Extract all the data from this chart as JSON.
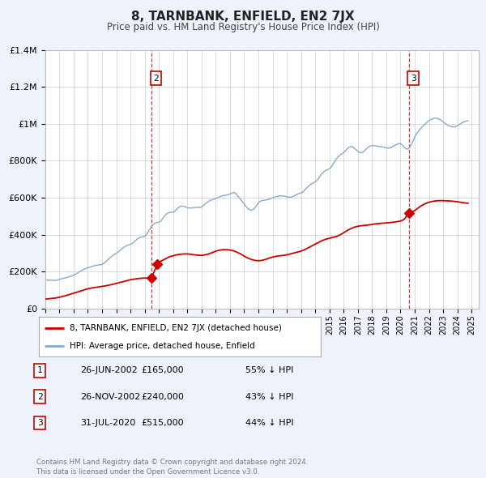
{
  "title": "8, TARNBANK, ENFIELD, EN2 7JX",
  "subtitle": "Price paid vs. HM Land Registry's House Price Index (HPI)",
  "bg_color": "#eef2fb",
  "plot_bg_color": "#ffffff",
  "red_line_color": "#cc0000",
  "blue_line_color": "#88aacc",
  "grid_color": "#cccccc",
  "x_start": 1995.0,
  "x_end": 2025.5,
  "y_min": 0,
  "y_max": 1400000,
  "yticks": [
    0,
    200000,
    400000,
    600000,
    800000,
    1000000,
    1200000,
    1400000
  ],
  "ytick_labels": [
    "£0",
    "£200K",
    "£400K",
    "£600K",
    "£800K",
    "£1M",
    "£1.2M",
    "£1.4M"
  ],
  "xtick_years": [
    1995,
    1996,
    1997,
    1998,
    1999,
    2000,
    2001,
    2002,
    2003,
    2004,
    2005,
    2006,
    2007,
    2008,
    2009,
    2010,
    2011,
    2012,
    2013,
    2014,
    2015,
    2016,
    2017,
    2018,
    2019,
    2020,
    2021,
    2022,
    2023,
    2024,
    2025
  ],
  "sale1_x": 2002.48,
  "sale1_y": 165000,
  "sale2_x": 2002.9,
  "sale2_y": 240000,
  "sale3_x": 2020.58,
  "sale3_y": 515000,
  "vline1_x": 2002.48,
  "vline2_x": 2020.58,
  "legend_label_red": "8, TARNBANK, ENFIELD, EN2 7JX (detached house)",
  "legend_label_blue": "HPI: Average price, detached house, Enfield",
  "table_rows": [
    [
      "1",
      "26-JUN-2002",
      "£165,000",
      "55% ↓ HPI"
    ],
    [
      "2",
      "26-NOV-2002",
      "£240,000",
      "43% ↓ HPI"
    ],
    [
      "3",
      "31-JUL-2020",
      "£515,000",
      "44% ↓ HPI"
    ]
  ],
  "footer": "Contains HM Land Registry data © Crown copyright and database right 2024.\nThis data is licensed under the Open Government Licence v3.0.",
  "hpi_data": {
    "years": [
      1995.0,
      1995.08,
      1995.17,
      1995.25,
      1995.33,
      1995.42,
      1995.5,
      1995.58,
      1995.67,
      1995.75,
      1995.83,
      1995.92,
      1996.0,
      1996.08,
      1996.17,
      1996.25,
      1996.33,
      1996.42,
      1996.5,
      1996.58,
      1996.67,
      1996.75,
      1996.83,
      1996.92,
      1997.0,
      1997.08,
      1997.17,
      1997.25,
      1997.33,
      1997.42,
      1997.5,
      1997.58,
      1997.67,
      1997.75,
      1997.83,
      1997.92,
      1998.0,
      1998.08,
      1998.17,
      1998.25,
      1998.33,
      1998.42,
      1998.5,
      1998.58,
      1998.67,
      1998.75,
      1998.83,
      1998.92,
      1999.0,
      1999.08,
      1999.17,
      1999.25,
      1999.33,
      1999.42,
      1999.5,
      1999.58,
      1999.67,
      1999.75,
      1999.83,
      1999.92,
      2000.0,
      2000.08,
      2000.17,
      2000.25,
      2000.33,
      2000.42,
      2000.5,
      2000.58,
      2000.67,
      2000.75,
      2000.83,
      2000.92,
      2001.0,
      2001.08,
      2001.17,
      2001.25,
      2001.33,
      2001.42,
      2001.5,
      2001.58,
      2001.67,
      2001.75,
      2001.83,
      2001.92,
      2002.0,
      2002.08,
      2002.17,
      2002.25,
      2002.33,
      2002.42,
      2002.5,
      2002.58,
      2002.67,
      2002.75,
      2002.83,
      2002.92,
      2003.0,
      2003.08,
      2003.17,
      2003.25,
      2003.33,
      2003.42,
      2003.5,
      2003.58,
      2003.67,
      2003.75,
      2003.83,
      2003.92,
      2004.0,
      2004.08,
      2004.17,
      2004.25,
      2004.33,
      2004.42,
      2004.5,
      2004.58,
      2004.67,
      2004.75,
      2004.83,
      2004.92,
      2005.0,
      2005.08,
      2005.17,
      2005.25,
      2005.33,
      2005.42,
      2005.5,
      2005.58,
      2005.67,
      2005.75,
      2005.83,
      2005.92,
      2006.0,
      2006.08,
      2006.17,
      2006.25,
      2006.33,
      2006.42,
      2006.5,
      2006.58,
      2006.67,
      2006.75,
      2006.83,
      2006.92,
      2007.0,
      2007.08,
      2007.17,
      2007.25,
      2007.33,
      2007.42,
      2007.5,
      2007.58,
      2007.67,
      2007.75,
      2007.83,
      2007.92,
      2008.0,
      2008.08,
      2008.17,
      2008.25,
      2008.33,
      2008.42,
      2008.5,
      2008.58,
      2008.67,
      2008.75,
      2008.83,
      2008.92,
      2009.0,
      2009.08,
      2009.17,
      2009.25,
      2009.33,
      2009.42,
      2009.5,
      2009.58,
      2009.67,
      2009.75,
      2009.83,
      2009.92,
      2010.0,
      2010.08,
      2010.17,
      2010.25,
      2010.33,
      2010.42,
      2010.5,
      2010.58,
      2010.67,
      2010.75,
      2010.83,
      2010.92,
      2011.0,
      2011.08,
      2011.17,
      2011.25,
      2011.33,
      2011.42,
      2011.5,
      2011.58,
      2011.67,
      2011.75,
      2011.83,
      2011.92,
      2012.0,
      2012.08,
      2012.17,
      2012.25,
      2012.33,
      2012.42,
      2012.5,
      2012.58,
      2012.67,
      2012.75,
      2012.83,
      2012.92,
      2013.0,
      2013.08,
      2013.17,
      2013.25,
      2013.33,
      2013.42,
      2013.5,
      2013.58,
      2013.67,
      2013.75,
      2013.83,
      2013.92,
      2014.0,
      2014.08,
      2014.17,
      2014.25,
      2014.33,
      2014.42,
      2014.5,
      2014.58,
      2014.67,
      2014.75,
      2014.83,
      2014.92,
      2015.0,
      2015.08,
      2015.17,
      2015.25,
      2015.33,
      2015.42,
      2015.5,
      2015.58,
      2015.67,
      2015.75,
      2015.83,
      2015.92,
      2016.0,
      2016.08,
      2016.17,
      2016.25,
      2016.33,
      2016.42,
      2016.5,
      2016.58,
      2016.67,
      2016.75,
      2016.83,
      2016.92,
      2017.0,
      2017.08,
      2017.17,
      2017.25,
      2017.33,
      2017.42,
      2017.5,
      2017.58,
      2017.67,
      2017.75,
      2017.83,
      2017.92,
      2018.0,
      2018.08,
      2018.17,
      2018.25,
      2018.33,
      2018.42,
      2018.5,
      2018.58,
      2018.67,
      2018.75,
      2018.83,
      2018.92,
      2019.0,
      2019.08,
      2019.17,
      2019.25,
      2019.33,
      2019.42,
      2019.5,
      2019.58,
      2019.67,
      2019.75,
      2019.83,
      2019.92,
      2020.0,
      2020.08,
      2020.17,
      2020.25,
      2020.33,
      2020.42,
      2020.5,
      2020.58,
      2020.67,
      2020.75,
      2020.83,
      2020.92,
      2021.0,
      2021.08,
      2021.17,
      2021.25,
      2021.33,
      2021.42,
      2021.5,
      2021.58,
      2021.67,
      2021.75,
      2021.83,
      2021.92,
      2022.0,
      2022.08,
      2022.17,
      2022.25,
      2022.33,
      2022.42,
      2022.5,
      2022.58,
      2022.67,
      2022.75,
      2022.83,
      2022.92,
      2023.0,
      2023.08,
      2023.17,
      2023.25,
      2023.33,
      2023.42,
      2023.5,
      2023.58,
      2023.67,
      2023.75,
      2023.83,
      2023.92,
      2024.0,
      2024.08,
      2024.17,
      2024.25,
      2024.33,
      2024.42,
      2024.5,
      2024.58,
      2024.67,
      2024.75
    ],
    "values": [
      155000,
      154000,
      153000,
      153000,
      153000,
      152000,
      152000,
      152000,
      151000,
      152000,
      153000,
      155000,
      157000,
      159000,
      160000,
      162000,
      163000,
      165000,
      167000,
      169000,
      171000,
      173000,
      175000,
      177000,
      180000,
      183000,
      186000,
      190000,
      194000,
      198000,
      202000,
      206000,
      210000,
      213000,
      216000,
      218000,
      220000,
      222000,
      224000,
      226000,
      228000,
      230000,
      232000,
      233000,
      234000,
      235000,
      236000,
      237000,
      238000,
      242000,
      247000,
      252000,
      258000,
      264000,
      270000,
      276000,
      281000,
      286000,
      291000,
      295000,
      299000,
      303000,
      307000,
      312000,
      318000,
      324000,
      329000,
      334000,
      338000,
      341000,
      343000,
      345000,
      347000,
      350000,
      354000,
      360000,
      366000,
      372000,
      377000,
      381000,
      384000,
      386000,
      387000,
      388000,
      390000,
      397000,
      406000,
      416000,
      427000,
      436000,
      445000,
      453000,
      459000,
      463000,
      465000,
      466000,
      467000,
      470000,
      476000,
      485000,
      494000,
      502000,
      509000,
      514000,
      518000,
      520000,
      521000,
      521000,
      521000,
      524000,
      530000,
      537000,
      544000,
      549000,
      552000,
      554000,
      554000,
      553000,
      551000,
      549000,
      547000,
      545000,
      544000,
      544000,
      545000,
      546000,
      547000,
      547000,
      547000,
      547000,
      547000,
      548000,
      549000,
      554000,
      560000,
      566000,
      571000,
      576000,
      580000,
      584000,
      587000,
      589000,
      591000,
      593000,
      595000,
      598000,
      601000,
      604000,
      607000,
      609000,
      611000,
      612000,
      613000,
      614000,
      616000,
      617000,
      620000,
      623000,
      626000,
      628000,
      627000,
      622000,
      614000,
      606000,
      598000,
      590000,
      582000,
      574000,
      566000,
      557000,
      549000,
      542000,
      537000,
      534000,
      532000,
      533000,
      537000,
      544000,
      553000,
      563000,
      572000,
      578000,
      582000,
      584000,
      585000,
      586000,
      587000,
      588000,
      590000,
      592000,
      595000,
      597000,
      600000,
      602000,
      604000,
      606000,
      608000,
      609000,
      610000,
      610000,
      610000,
      609000,
      608000,
      607000,
      605000,
      604000,
      603000,
      603000,
      604000,
      606000,
      609000,
      612000,
      616000,
      619000,
      622000,
      624000,
      626000,
      629000,
      634000,
      641000,
      648000,
      655000,
      661000,
      667000,
      671000,
      675000,
      679000,
      682000,
      686000,
      691000,
      698000,
      707000,
      716000,
      725000,
      733000,
      739000,
      744000,
      748000,
      751000,
      754000,
      758000,
      763000,
      771000,
      781000,
      792000,
      803000,
      812000,
      820000,
      826000,
      831000,
      836000,
      840000,
      845000,
      851000,
      858000,
      865000,
      871000,
      875000,
      877000,
      877000,
      874000,
      869000,
      863000,
      857000,
      851000,
      846000,
      844000,
      844000,
      846000,
      851000,
      857000,
      864000,
      870000,
      875000,
      879000,
      882000,
      883000,
      883000,
      882000,
      881000,
      880000,
      879000,
      878000,
      877000,
      876000,
      875000,
      874000,
      872000,
      870000,
      869000,
      869000,
      870000,
      872000,
      876000,
      880000,
      884000,
      887000,
      890000,
      892000,
      893000,
      893000,
      889000,
      882000,
      874000,
      868000,
      864000,
      864000,
      868000,
      876000,
      887000,
      900000,
      915000,
      929000,
      941000,
      951000,
      960000,
      968000,
      975000,
      982000,
      989000,
      995000,
      1001000,
      1007000,
      1013000,
      1018000,
      1022000,
      1025000,
      1028000,
      1030000,
      1031000,
      1031000,
      1030000,
      1028000,
      1025000,
      1021000,
      1016000,
      1011000,
      1006000,
      1001000,
      997000,
      993000,
      990000,
      987000,
      985000,
      984000,
      984000,
      985000,
      987000,
      990000,
      994000,
      998000,
      1003000,
      1007000,
      1010000,
      1013000,
      1015000,
      1016000,
      1017000
    ]
  },
  "red_data": {
    "years": [
      1995.0,
      1995.25,
      1995.5,
      1995.75,
      1996.0,
      1996.25,
      1996.5,
      1996.75,
      1997.0,
      1997.25,
      1997.5,
      1997.75,
      1998.0,
      1998.25,
      1998.5,
      1998.75,
      1999.0,
      1999.25,
      1999.5,
      1999.75,
      2000.0,
      2000.25,
      2000.5,
      2000.75,
      2001.0,
      2001.25,
      2001.5,
      2001.75,
      2002.0,
      2002.25,
      2002.48,
      2002.9,
      2003.0,
      2003.25,
      2003.5,
      2003.75,
      2004.0,
      2004.25,
      2004.5,
      2004.75,
      2005.0,
      2005.25,
      2005.5,
      2005.75,
      2006.0,
      2006.25,
      2006.5,
      2006.75,
      2007.0,
      2007.25,
      2007.5,
      2007.75,
      2008.0,
      2008.25,
      2008.5,
      2008.75,
      2009.0,
      2009.25,
      2009.5,
      2009.75,
      2010.0,
      2010.25,
      2010.5,
      2010.75,
      2011.0,
      2011.25,
      2011.5,
      2011.75,
      2012.0,
      2012.25,
      2012.5,
      2012.75,
      2013.0,
      2013.25,
      2013.5,
      2013.75,
      2014.0,
      2014.25,
      2014.5,
      2014.75,
      2015.0,
      2015.25,
      2015.5,
      2015.75,
      2016.0,
      2016.25,
      2016.5,
      2016.75,
      2017.0,
      2017.25,
      2017.5,
      2017.75,
      2018.0,
      2018.25,
      2018.5,
      2018.75,
      2019.0,
      2019.25,
      2019.5,
      2019.75,
      2020.0,
      2020.25,
      2020.58,
      2021.0,
      2021.25,
      2021.5,
      2021.75,
      2022.0,
      2022.25,
      2022.5,
      2022.75,
      2023.0,
      2023.25,
      2023.5,
      2023.75,
      2024.0,
      2024.25,
      2024.5,
      2024.75
    ],
    "values": [
      50000,
      52000,
      54000,
      56000,
      60000,
      65000,
      70000,
      76000,
      82000,
      88000,
      94000,
      100000,
      106000,
      110000,
      113000,
      116000,
      119000,
      122000,
      126000,
      130000,
      135000,
      140000,
      145000,
      150000,
      155000,
      158000,
      161000,
      163000,
      164000,
      164500,
      165000,
      240000,
      250000,
      260000,
      270000,
      280000,
      285000,
      290000,
      293000,
      295000,
      295000,
      293000,
      290000,
      288000,
      287000,
      290000,
      295000,
      302000,
      310000,
      315000,
      318000,
      318000,
      316000,
      312000,
      304000,
      295000,
      283000,
      273000,
      265000,
      260000,
      258000,
      260000,
      265000,
      272000,
      278000,
      282000,
      285000,
      287000,
      290000,
      295000,
      300000,
      305000,
      310000,
      318000,
      328000,
      338000,
      348000,
      358000,
      368000,
      375000,
      380000,
      385000,
      390000,
      398000,
      410000,
      422000,
      432000,
      440000,
      445000,
      448000,
      450000,
      452000,
      455000,
      458000,
      460000,
      462000,
      463000,
      465000,
      467000,
      470000,
      473000,
      482000,
      515000,
      530000,
      545000,
      558000,
      568000,
      575000,
      580000,
      583000,
      584000,
      584000,
      583000,
      582000,
      580000,
      578000,
      575000,
      572000,
      570000
    ]
  }
}
